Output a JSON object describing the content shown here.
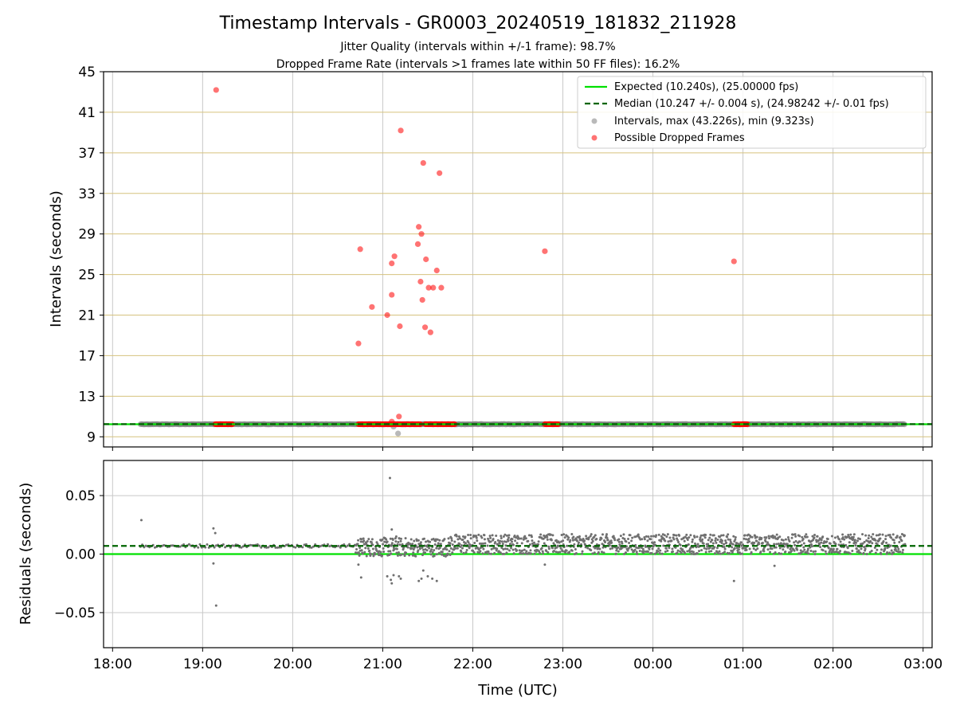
{
  "chart_data": [
    {
      "type": "scatter",
      "title": "Timestamp Intervals - GR0003_20240519_181832_211928",
      "subtitle_lines": [
        "Jitter Quality (intervals within +/-1 frame): 98.7%",
        "Dropped Frame Rate (intervals >1 frames late within 50 FF files): 16.2%"
      ],
      "xlabel": "",
      "ylabel": "Intervals (seconds)",
      "ylim": [
        8.0,
        45
      ],
      "yticks": [
        9,
        13,
        17,
        21,
        25,
        29,
        33,
        37,
        41,
        45
      ],
      "x_unit": "hours since 18:00 UTC",
      "xlim": [
        -0.1,
        9.1
      ],
      "xticks": [
        0,
        1,
        2,
        3,
        4,
        5,
        6,
        7,
        8,
        9
      ],
      "grid": true,
      "legend_position": "top-right",
      "series": [
        {
          "name": "Expected (10.240s), (25.00000 fps)",
          "kind": "hline",
          "value": 10.24,
          "color": "#00e000"
        },
        {
          "name": "Median (10.247 +/- 0.004 s), (24.98242 +/- 0.01 fps)",
          "kind": "hline",
          "value": 10.247,
          "color": "#006400"
        },
        {
          "name": "Intervals, max (43.226s), min (9.323s)",
          "kind": "scatter",
          "color": "#808080",
          "x_range": [
            0.31,
            8.8
          ],
          "baseline": 10.24,
          "extra_points": [
            {
              "x": 3.17,
              "y": 9.323
            },
            {
              "x": 3.12,
              "y": 10.0
            }
          ]
        },
        {
          "name": "Possible Dropped Frames",
          "kind": "scatter",
          "color": "#ff0000",
          "points": [
            {
              "x": 1.15,
              "y": 43.2
            },
            {
              "x": 3.2,
              "y": 39.2
            },
            {
              "x": 3.45,
              "y": 36.0
            },
            {
              "x": 3.63,
              "y": 35.0
            },
            {
              "x": 3.4,
              "y": 29.7
            },
            {
              "x": 3.43,
              "y": 29.0
            },
            {
              "x": 3.39,
              "y": 28.0
            },
            {
              "x": 2.75,
              "y": 27.5
            },
            {
              "x": 4.8,
              "y": 27.3
            },
            {
              "x": 3.13,
              "y": 26.8
            },
            {
              "x": 3.48,
              "y": 26.5
            },
            {
              "x": 3.1,
              "y": 26.1
            },
            {
              "x": 6.9,
              "y": 26.3
            },
            {
              "x": 3.6,
              "y": 25.4
            },
            {
              "x": 3.42,
              "y": 24.3
            },
            {
              "x": 3.51,
              "y": 23.7
            },
            {
              "x": 3.56,
              "y": 23.7
            },
            {
              "x": 3.65,
              "y": 23.7
            },
            {
              "x": 3.1,
              "y": 23.0
            },
            {
              "x": 3.44,
              "y": 22.5
            },
            {
              "x": 2.88,
              "y": 21.8
            },
            {
              "x": 3.05,
              "y": 21.0
            },
            {
              "x": 3.19,
              "y": 19.9
            },
            {
              "x": 3.47,
              "y": 19.8
            },
            {
              "x": 3.53,
              "y": 19.3
            },
            {
              "x": 2.73,
              "y": 18.2
            },
            {
              "x": 3.18,
              "y": 11.0
            },
            {
              "x": 3.1,
              "y": 10.5
            }
          ],
          "bands": [
            [
              1.14,
              1.33
            ],
            [
              2.73,
              3.42
            ],
            [
              3.47,
              3.8
            ],
            [
              4.8,
              4.95
            ],
            [
              6.9,
              7.05
            ]
          ],
          "band_value": 10.24
        }
      ]
    },
    {
      "type": "scatter",
      "xlabel": "Time (UTC)",
      "ylabel": "Residuals (seconds)",
      "ylim": [
        -0.08,
        0.08
      ],
      "yticks": [
        -0.05,
        0.0,
        0.05
      ],
      "ytick_labels": [
        "−0.05",
        "0.00",
        "0.05"
      ],
      "xlim": [
        -0.1,
        9.1
      ],
      "xticks": [
        0,
        1,
        2,
        3,
        4,
        5,
        6,
        7,
        8,
        9
      ],
      "xtick_labels": [
        "18:00",
        "19:00",
        "20:00",
        "21:00",
        "22:00",
        "23:00",
        "00:00",
        "01:00",
        "02:00",
        "03:00"
      ],
      "grid": true,
      "series": [
        {
          "name": "Expected",
          "kind": "hline",
          "value": 0.0,
          "color": "#00e000"
        },
        {
          "name": "Median",
          "kind": "hline",
          "value": 0.007,
          "color": "#006400"
        },
        {
          "name": "Residuals",
          "kind": "scatter",
          "color": "#707070",
          "segments": [
            {
              "x": [
                0.31,
                2.7
              ],
              "center": 0.007,
              "spread": 0.0015
            },
            {
              "x": [
                2.7,
                3.75
              ],
              "center": 0.006,
              "spread": 0.008
            },
            {
              "x": [
                3.75,
                8.8
              ],
              "center": 0.0085,
              "spread": 0.0085
            }
          ],
          "outliers": [
            {
              "x": 0.32,
              "y": 0.029
            },
            {
              "x": 1.12,
              "y": 0.022
            },
            {
              "x": 1.14,
              "y": 0.018
            },
            {
              "x": 1.12,
              "y": -0.008
            },
            {
              "x": 1.15,
              "y": -0.044
            },
            {
              "x": 3.08,
              "y": 0.065
            },
            {
              "x": 3.1,
              "y": 0.021
            },
            {
              "x": 3.15,
              "y": 0.015
            },
            {
              "x": 2.73,
              "y": -0.009
            },
            {
              "x": 2.76,
              "y": -0.02
            },
            {
              "x": 3.05,
              "y": -0.019
            },
            {
              "x": 3.09,
              "y": -0.022
            },
            {
              "x": 3.12,
              "y": -0.018
            },
            {
              "x": 3.1,
              "y": -0.025
            },
            {
              "x": 3.18,
              "y": -0.019
            },
            {
              "x": 3.2,
              "y": -0.021
            },
            {
              "x": 3.4,
              "y": -0.023
            },
            {
              "x": 3.43,
              "y": -0.021
            },
            {
              "x": 3.45,
              "y": -0.014
            },
            {
              "x": 3.5,
              "y": -0.019
            },
            {
              "x": 3.55,
              "y": -0.021
            },
            {
              "x": 3.6,
              "y": -0.023
            },
            {
              "x": 4.8,
              "y": -0.009
            },
            {
              "x": 6.9,
              "y": -0.023
            },
            {
              "x": 7.35,
              "y": -0.01
            }
          ]
        }
      ]
    }
  ]
}
